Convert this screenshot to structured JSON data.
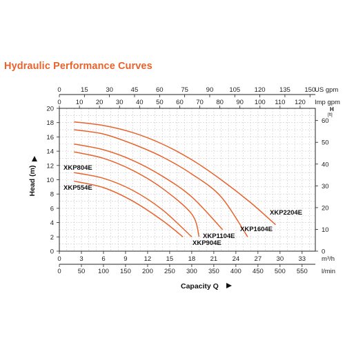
{
  "chart_data": {
    "type": "line",
    "title": "Hydraulic Performance Curves",
    "xlabel": "Capacity Q",
    "ylabel": "Head (m)",
    "y2label": "H",
    "y2unit": "[ft]",
    "grid": true,
    "axes": {
      "m3h": {
        "unit": "m³/h",
        "ticks": [
          0,
          3,
          6,
          9,
          12,
          15,
          18,
          21,
          24,
          27,
          30,
          33
        ],
        "lim": [
          0,
          34.8
        ]
      },
      "lmin": {
        "unit": "l/min",
        "ticks": [
          0,
          50,
          100,
          150,
          200,
          250,
          300,
          350,
          400,
          450,
          500,
          550
        ],
        "lim": [
          0,
          580
        ]
      },
      "usgpm": {
        "unit": "US gpm",
        "ticks": [
          0,
          15,
          30,
          45,
          60,
          75,
          90,
          105,
          120,
          135,
          150
        ],
        "lim": [
          0,
          153.2
        ]
      },
      "impgpm": {
        "unit": "Imp gpm",
        "ticks": [
          0,
          10,
          20,
          30,
          40,
          50,
          60,
          70,
          80,
          90,
          100,
          110,
          120
        ],
        "lim": [
          0,
          127.6
        ]
      },
      "head_m": {
        "unit": "m",
        "ticks": [
          0,
          2,
          4,
          6,
          8,
          10,
          12,
          14,
          16,
          18,
          20
        ],
        "lim": [
          0,
          20
        ]
      },
      "head_ft": {
        "unit": "ft",
        "ticks": [
          0,
          10,
          20,
          30,
          40,
          50,
          60
        ],
        "lim": [
          0,
          65.6
        ]
      }
    },
    "series": [
      {
        "name": "XKP554E",
        "x": [
          2.0,
          6.0,
          10.0,
          14.0,
          16.8
        ],
        "y": [
          9.8,
          8.9,
          7.0,
          4.3,
          2.0
        ]
      },
      {
        "name": "XKP804E",
        "x": [
          2.0,
          6.0,
          10.0,
          14.0,
          18.0
        ],
        "y": [
          11.0,
          10.2,
          8.5,
          5.8,
          2.0
        ]
      },
      {
        "name": "XKP904E",
        "x": [
          2.0,
          6.0,
          10.0,
          14.0,
          18.0,
          19.0
        ],
        "y": [
          13.9,
          13.0,
          11.3,
          8.8,
          5.2,
          2.0
        ]
      },
      {
        "name": "XKP1104E",
        "x": [
          2.0,
          6.0,
          10.0,
          14.0,
          18.0,
          22.2
        ],
        "y": [
          15.0,
          14.2,
          12.7,
          10.5,
          7.6,
          3.0
        ]
      },
      {
        "name": "XKP1604E",
        "x": [
          2.0,
          6.0,
          10.0,
          14.0,
          18.0,
          22.0,
          25.6
        ],
        "y": [
          17.0,
          16.4,
          15.0,
          13.2,
          10.8,
          7.6,
          2.0
        ]
      },
      {
        "name": "XKP2204E",
        "x": [
          2.0,
          6.0,
          10.0,
          14.0,
          18.0,
          22.0,
          26.0,
          29.4
        ],
        "y": [
          18.1,
          17.6,
          16.6,
          15.0,
          12.8,
          10.0,
          6.8,
          3.7
        ]
      }
    ],
    "curve_color": "#e8622c",
    "grid_color": "#cccccc",
    "axis_color": "#222222"
  }
}
